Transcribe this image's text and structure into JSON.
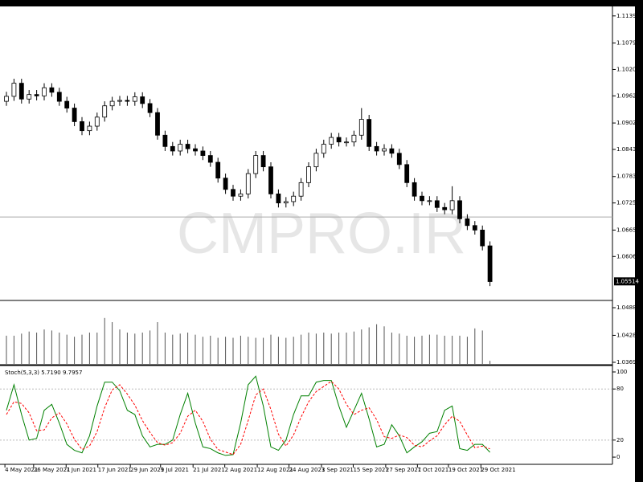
{
  "chart_data": {
    "type": "candlestick",
    "watermark": "CMPRO.IR",
    "ylim": [
      1.0511,
      1.116
    ],
    "yticks": [
      {
        "value": 1.1139,
        "label": "1.11390"
      },
      {
        "value": 1.1079,
        "label": "1.10790"
      },
      1.10205,
      {
        "value": 1.0962,
        "label": "1.09620"
      },
      {
        "value": 1.0902,
        "label": "1.09020"
      },
      1.08435,
      1.07835,
      {
        "value": 1.0725,
        "label": "1.07250"
      },
      {
        "value": 1.0665,
        "label": "1.06650"
      },
      1.06065
    ],
    "last_price": 1.05514,
    "hline": 1.0694,
    "xticks": [
      {
        "value": -0.2,
        "label": "4 May 2021"
      },
      {
        "value": 3.6,
        "label": "26 May 2021"
      },
      {
        "value": 7.9,
        "label": "7 Jun 2021"
      },
      {
        "value": 12.1,
        "label": "17 Jun 2021"
      },
      {
        "value": 16.4,
        "label": "29 Jun 2021"
      },
      {
        "value": 20.4,
        "label": "9 Jul 2021"
      },
      {
        "value": 24.7,
        "label": "21 Jul 2021"
      },
      {
        "value": 28.9,
        "label": "2 Aug 2021"
      },
      {
        "value": 33.2,
        "label": "12 Aug 2021"
      },
      {
        "value": 37.4,
        "label": "24 Aug 2021"
      },
      {
        "value": 41.7,
        "label": "3 Sep 2021"
      },
      {
        "value": 45.9,
        "label": "15 Sep 2021"
      },
      {
        "value": 50.2,
        "label": "27 Sep 2021"
      },
      {
        "value": 54.4,
        "label": "7 Oct 2021"
      },
      {
        "value": 58.5,
        "label": "19 Oct 2021"
      },
      {
        "value": 62.8,
        "label": "29 Oct 2021"
      }
    ],
    "open": [
      1.095,
      1.0961,
      1.099,
      1.0955,
      1.0965,
      1.0962,
      1.098,
      1.097,
      1.095,
      1.0935,
      1.0905,
      1.0885,
      1.0895,
      1.0915,
      1.094,
      1.095,
      1.0952,
      1.095,
      1.096,
      1.0945,
      1.0925,
      1.0875,
      1.085,
      1.084,
      1.0855,
      1.0845,
      1.084,
      1.083,
      1.0815,
      1.078,
      1.0755,
      1.074,
      1.0745,
      1.079,
      1.083,
      1.0805,
      1.0745,
      1.0725,
      1.0728,
      1.074,
      1.077,
      1.0805,
      1.0835,
      1.0855,
      1.087,
      1.086,
      1.086,
      1.0875,
      1.091,
      1.085,
      1.084,
      1.0845,
      1.0835,
      1.081,
      1.077,
      1.074,
      1.073,
      1.073,
      1.0715,
      1.071,
      1.073,
      1.069,
      1.0675,
      1.0665,
      1.063
    ],
    "high": [
      1.0971,
      1.1,
      1.1,
      1.0975,
      1.0975,
      1.099,
      1.099,
      1.098,
      1.096,
      1.0945,
      1.0915,
      1.0905,
      1.0925,
      1.095,
      1.096,
      1.0962,
      1.0962,
      1.097,
      1.097,
      1.0955,
      1.0935,
      1.0885,
      1.086,
      1.0865,
      1.0865,
      1.0855,
      1.085,
      1.084,
      1.0825,
      1.079,
      1.0765,
      1.0755,
      1.08,
      1.084,
      1.084,
      1.0815,
      1.0755,
      1.0738,
      1.075,
      1.078,
      1.0815,
      1.0845,
      1.0865,
      1.088,
      1.088,
      1.087,
      1.0885,
      1.0935,
      1.092,
      1.086,
      1.0855,
      1.0855,
      1.0845,
      1.082,
      1.078,
      1.075,
      1.074,
      1.074,
      1.0725,
      1.0762,
      1.074,
      1.07,
      1.0685,
      1.0675,
      1.064
    ],
    "low": [
      1.094,
      1.0951,
      1.0945,
      1.0945,
      1.0952,
      1.0952,
      1.096,
      1.094,
      1.0925,
      1.0895,
      1.0875,
      1.0875,
      1.0885,
      1.0905,
      1.093,
      1.094,
      1.094,
      1.094,
      1.0935,
      1.0915,
      1.0865,
      1.084,
      1.083,
      1.083,
      1.0835,
      1.083,
      1.082,
      1.0805,
      1.077,
      1.0745,
      1.073,
      1.073,
      1.0735,
      1.078,
      1.0795,
      1.0735,
      1.0715,
      1.0715,
      1.0718,
      1.073,
      1.076,
      1.0795,
      1.0825,
      1.0845,
      1.085,
      1.085,
      1.085,
      1.0865,
      1.084,
      1.083,
      1.083,
      1.0825,
      1.08,
      1.076,
      1.073,
      1.072,
      1.072,
      1.0705,
      1.07,
      1.07,
      1.068,
      1.0665,
      1.0655,
      1.062,
      1.0541
    ],
    "close": [
      1.0961,
      1.099,
      1.0955,
      1.0965,
      1.0962,
      1.098,
      1.097,
      1.095,
      1.0935,
      1.0905,
      1.0885,
      1.0895,
      1.0915,
      1.094,
      1.095,
      1.0952,
      1.095,
      1.096,
      1.0945,
      1.0925,
      1.0875,
      1.085,
      1.084,
      1.0855,
      1.0845,
      1.084,
      1.083,
      1.0815,
      1.078,
      1.0755,
      1.074,
      1.0745,
      1.079,
      1.083,
      1.0805,
      1.0745,
      1.0725,
      1.0728,
      1.074,
      1.077,
      1.0805,
      1.0835,
      1.0855,
      1.087,
      1.086,
      1.086,
      1.0875,
      1.091,
      1.085,
      1.084,
      1.0845,
      1.0835,
      1.081,
      1.077,
      1.074,
      1.073,
      1.073,
      1.0715,
      1.071,
      1.073,
      1.069,
      1.0675,
      1.0665,
      1.063,
      1.0551
    ],
    "volume_pane_ylim": [
      1.0366,
      1.0502
    ],
    "volume_pane_ticks": [
      {
        "value": 1.0488,
        "label": "1.04880"
      },
      {
        "value": 1.0428,
        "label": "1.04280"
      },
      1.03695
    ],
    "volume_lim": [
      0,
      60000
    ],
    "volume": [
      27000,
      27000,
      29000,
      31000,
      30000,
      33000,
      32000,
      30000,
      28000,
      26000,
      28000,
      30000,
      30000,
      44000,
      40000,
      33000,
      30000,
      29000,
      30000,
      32000,
      40000,
      30000,
      28000,
      29000,
      30000,
      28000,
      26000,
      27000,
      25000,
      26000,
      25000,
      27000,
      26000,
      25000,
      25000,
      28000,
      26000,
      25000,
      26000,
      28000,
      30000,
      29000,
      30000,
      29000,
      30000,
      30000,
      31000,
      33000,
      35000,
      38000,
      36000,
      30000,
      29000,
      27000,
      26000,
      27000,
      28000,
      28000,
      27000,
      27000,
      27000,
      26000,
      34000,
      32000,
      3000
    ],
    "stoch_title": "Stoch(5,3,3) 5.7190 9.7957",
    "stoch_ylim": [
      -7.5,
      106.6
    ],
    "stoch_ticks": [
      100,
      80,
      20,
      0
    ],
    "stoch_levels": [
      80,
      20
    ],
    "stoch_series": [
      {
        "color": "#008000",
        "values": [
          55,
          85,
          50,
          20,
          22,
          55,
          62,
          40,
          15,
          8,
          5,
          25,
          60,
          88,
          88,
          78,
          55,
          50,
          25,
          12,
          15,
          15,
          20,
          50,
          75,
          40,
          12,
          10,
          5,
          2,
          3,
          40,
          85,
          95,
          60,
          12,
          8,
          20,
          50,
          72,
          72,
          88,
          90,
          90,
          60,
          35,
          55,
          75,
          45,
          12,
          15,
          38,
          25,
          5,
          12,
          18,
          28,
          30,
          55,
          60,
          10,
          8,
          15,
          15,
          5.719
        ]
      },
      {
        "color": "#ff0000",
        "dashed": true,
        "values": [
          50,
          65,
          63,
          52,
          31,
          32,
          46,
          52,
          39,
          21,
          9,
          13,
          30,
          58,
          79,
          85,
          74,
          61,
          43,
          29,
          17,
          14,
          17,
          28,
          48,
          55,
          42,
          21,
          9,
          6,
          3,
          15,
          43,
          73,
          80,
          56,
          27,
          13,
          26,
          47,
          65,
          77,
          83,
          89,
          80,
          62,
          50,
          55,
          58,
          44,
          24,
          22,
          26,
          23,
          14,
          12,
          19,
          25,
          38,
          48,
          42,
          26,
          11,
          13,
          9.7957
        ]
      }
    ]
  }
}
